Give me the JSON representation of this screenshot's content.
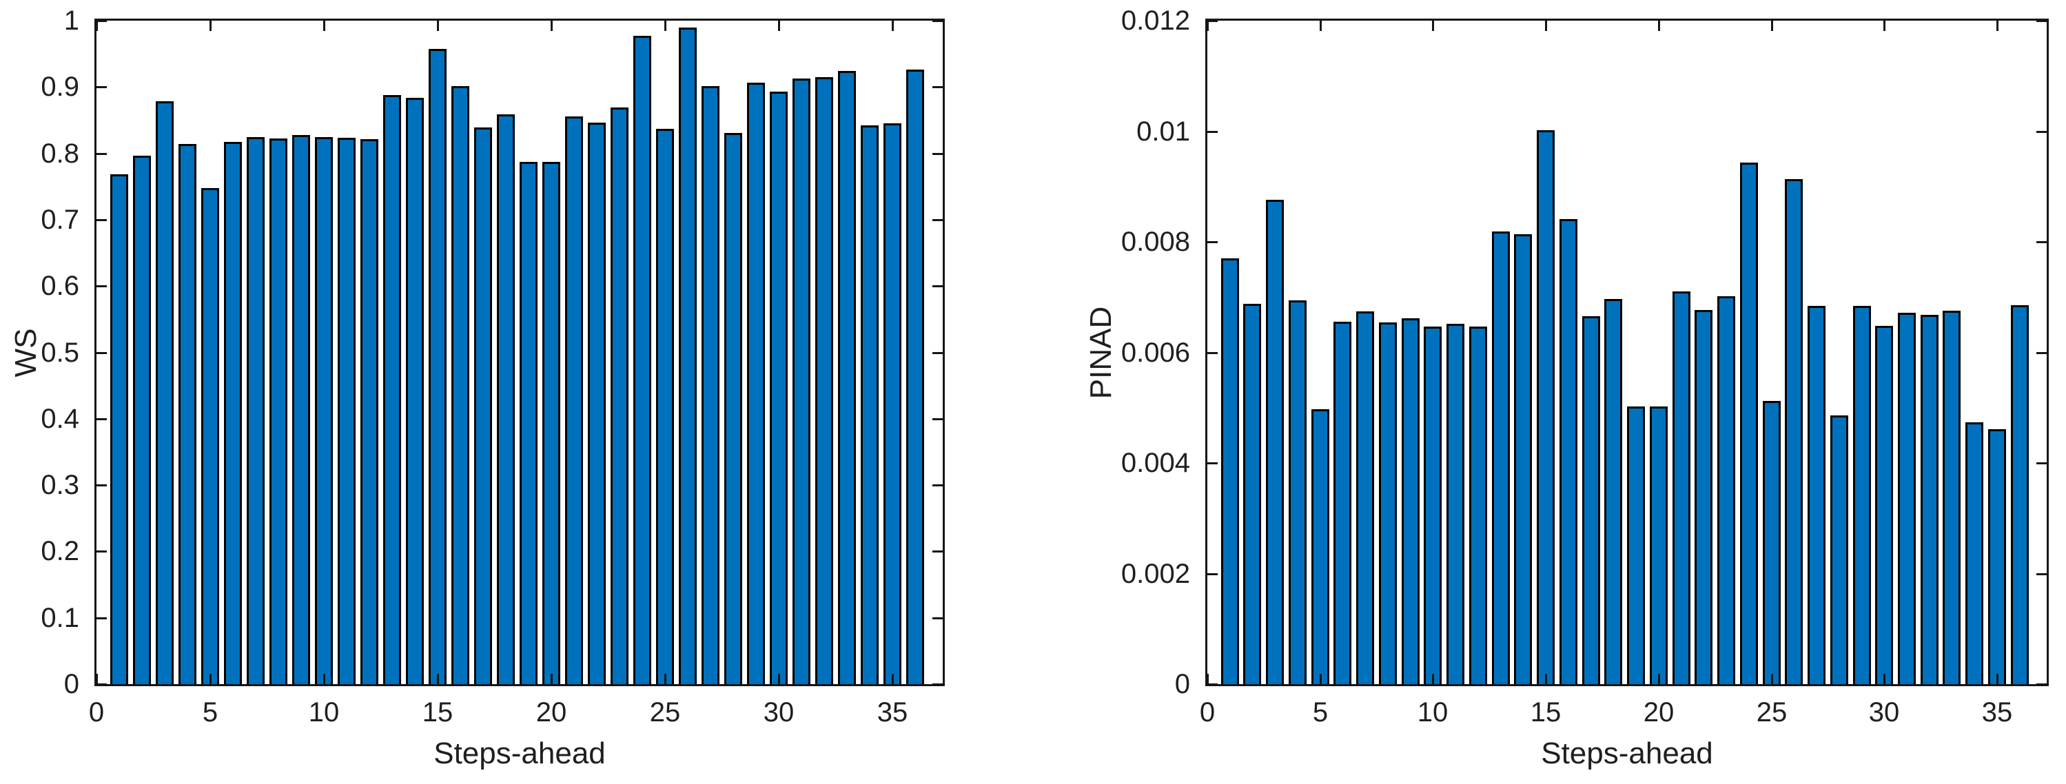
{
  "figure": {
    "background": "#ffffff",
    "bar_fill_color": "#0072BD",
    "bar_edge_color": "#000000",
    "axis_line_color": "#161616",
    "text_color": "#1f1f1f"
  },
  "chart_data": [
    {
      "type": "bar",
      "title": "",
      "xlabel": "Steps-ahead",
      "ylabel": "WS",
      "x": [
        1,
        2,
        3,
        4,
        5,
        6,
        7,
        8,
        9,
        10,
        11,
        12,
        13,
        14,
        15,
        16,
        17,
        18,
        19,
        20,
        21,
        22,
        23,
        24,
        25,
        26,
        27,
        28,
        29,
        30,
        31,
        32,
        33,
        34,
        35,
        36
      ],
      "values": [
        0.768,
        0.796,
        0.878,
        0.814,
        0.748,
        0.817,
        0.824,
        0.822,
        0.828,
        0.824,
        0.823,
        0.821,
        0.888,
        0.884,
        0.957,
        0.901,
        0.839,
        0.859,
        0.787,
        0.787,
        0.856,
        0.846,
        0.869,
        0.977,
        0.837,
        0.99,
        0.901,
        0.831,
        0.907,
        0.893,
        0.913,
        0.915,
        0.924,
        0.842,
        0.845,
        0.926
      ],
      "xlim": [
        0,
        37.2
      ],
      "ylim": [
        0,
        1
      ],
      "xticks": [
        0,
        5,
        10,
        15,
        20,
        25,
        30,
        35
      ],
      "xtick_labels": [
        "0",
        "5",
        "10",
        "15",
        "20",
        "25",
        "30",
        "35"
      ],
      "yticks": [
        0,
        0.1,
        0.2,
        0.3,
        0.4,
        0.5,
        0.6,
        0.7,
        0.8,
        0.9,
        1
      ],
      "ytick_labels": [
        "0",
        "0.1",
        "0.2",
        "0.3",
        "0.4",
        "0.5",
        "0.6",
        "0.7",
        "0.8",
        "0.9",
        "1"
      ],
      "grid": false,
      "legend": null
    },
    {
      "type": "bar",
      "title": "",
      "xlabel": "Steps-ahead",
      "ylabel": "PINAD",
      "x": [
        1,
        2,
        3,
        4,
        5,
        6,
        7,
        8,
        9,
        10,
        11,
        12,
        13,
        14,
        15,
        16,
        17,
        18,
        19,
        20,
        21,
        22,
        23,
        24,
        25,
        26,
        27,
        28,
        29,
        30,
        31,
        32,
        33,
        34,
        35,
        36
      ],
      "values": [
        0.0077,
        0.00688,
        0.00876,
        0.00694,
        0.00497,
        0.00656,
        0.00674,
        0.00654,
        0.00662,
        0.00647,
        0.00652,
        0.00647,
        0.00819,
        0.00814,
        0.01002,
        0.00841,
        0.00666,
        0.00696,
        0.00502,
        0.00502,
        0.0071,
        0.00677,
        0.00701,
        0.00943,
        0.00512,
        0.00914,
        0.00684,
        0.00486,
        0.00684,
        0.00648,
        0.00672,
        0.00668,
        0.00676,
        0.00473,
        0.00461,
        0.00685
      ],
      "xlim": [
        0,
        37.2
      ],
      "ylim": [
        0,
        0.012
      ],
      "xticks": [
        0,
        5,
        10,
        15,
        20,
        25,
        30,
        35
      ],
      "xtick_labels": [
        "0",
        "5",
        "10",
        "15",
        "20",
        "25",
        "30",
        "35"
      ],
      "yticks": [
        0,
        0.002,
        0.004,
        0.006,
        0.008,
        0.01,
        0.012
      ],
      "ytick_labels": [
        "0",
        "0.002",
        "0.004",
        "0.006",
        "0.008",
        "0.01",
        "0.012"
      ],
      "grid": false,
      "legend": null
    }
  ]
}
